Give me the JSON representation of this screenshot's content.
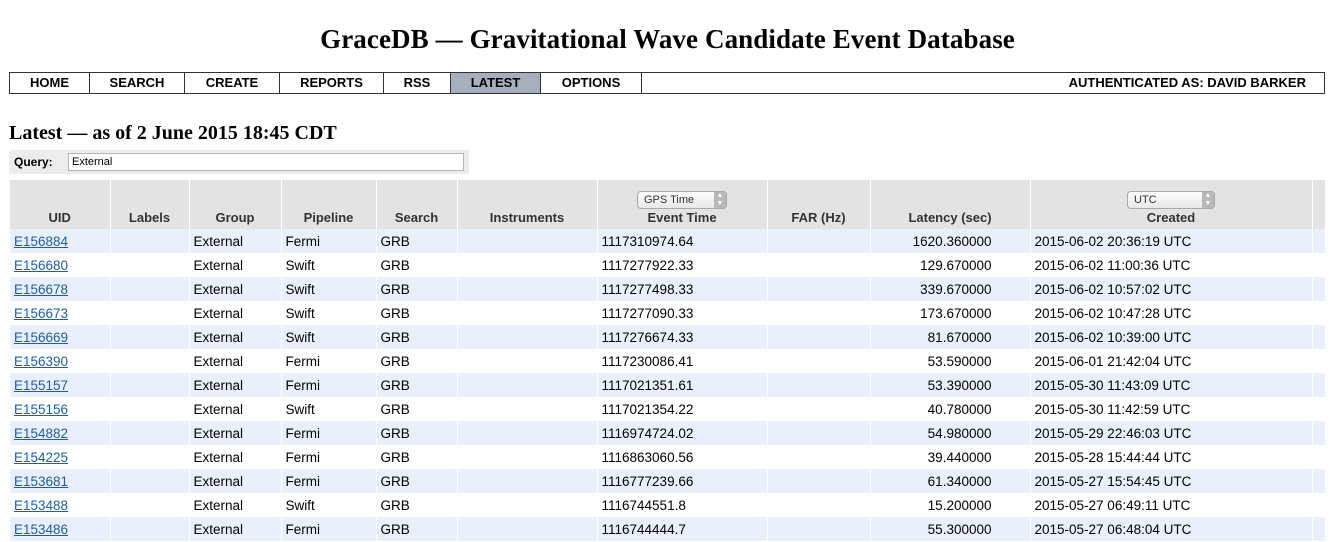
{
  "title": "GraceDB — Gravitational Wave Candidate Event Database",
  "nav": {
    "items": [
      {
        "label": "HOME"
      },
      {
        "label": "SEARCH"
      },
      {
        "label": "CREATE"
      },
      {
        "label": "REPORTS"
      },
      {
        "label": "RSS"
      },
      {
        "label": "LATEST",
        "active": true
      },
      {
        "label": "OPTIONS"
      }
    ],
    "auth": "AUTHENTICATED AS: DAVID BARKER",
    "active_color": "#a7afbd"
  },
  "subtitle": "Latest — as of 2 June 2015 18:45 CDT",
  "query": {
    "label": "Query:",
    "value": "External"
  },
  "table": {
    "columns": {
      "uid": "UID",
      "labels": "Labels",
      "group": "Group",
      "pipeline": "Pipeline",
      "search": "Search",
      "instruments": "Instruments",
      "event_time": "Event Time",
      "far": "FAR (Hz)",
      "latency": "Latency (sec)",
      "created": "Created"
    },
    "event_time_select": "GPS Time",
    "created_select": "UTC",
    "rows": [
      {
        "uid": "E156884",
        "labels": "",
        "group": "External",
        "pipeline": "Fermi",
        "search": "GRB",
        "instruments": "",
        "event_time": "1117310974.64",
        "far": "",
        "latency": "1620.360000",
        "created": "2015-06-02 20:36:19 UTC"
      },
      {
        "uid": "E156680",
        "labels": "",
        "group": "External",
        "pipeline": "Swift",
        "search": "GRB",
        "instruments": "",
        "event_time": "1117277922.33",
        "far": "",
        "latency": "129.670000",
        "created": "2015-06-02 11:00:36 UTC"
      },
      {
        "uid": "E156678",
        "labels": "",
        "group": "External",
        "pipeline": "Swift",
        "search": "GRB",
        "instruments": "",
        "event_time": "1117277498.33",
        "far": "",
        "latency": "339.670000",
        "created": "2015-06-02 10:57:02 UTC"
      },
      {
        "uid": "E156673",
        "labels": "",
        "group": "External",
        "pipeline": "Swift",
        "search": "GRB",
        "instruments": "",
        "event_time": "1117277090.33",
        "far": "",
        "latency": "173.670000",
        "created": "2015-06-02 10:47:28 UTC"
      },
      {
        "uid": "E156669",
        "labels": "",
        "group": "External",
        "pipeline": "Swift",
        "search": "GRB",
        "instruments": "",
        "event_time": "1117276674.33",
        "far": "",
        "latency": "81.670000",
        "created": "2015-06-02 10:39:00 UTC"
      },
      {
        "uid": "E156390",
        "labels": "",
        "group": "External",
        "pipeline": "Fermi",
        "search": "GRB",
        "instruments": "",
        "event_time": "1117230086.41",
        "far": "",
        "latency": "53.590000",
        "created": "2015-06-01 21:42:04 UTC"
      },
      {
        "uid": "E155157",
        "labels": "",
        "group": "External",
        "pipeline": "Fermi",
        "search": "GRB",
        "instruments": "",
        "event_time": "1117021351.61",
        "far": "",
        "latency": "53.390000",
        "created": "2015-05-30 11:43:09 UTC"
      },
      {
        "uid": "E155156",
        "labels": "",
        "group": "External",
        "pipeline": "Swift",
        "search": "GRB",
        "instruments": "",
        "event_time": "1117021354.22",
        "far": "",
        "latency": "40.780000",
        "created": "2015-05-30 11:42:59 UTC"
      },
      {
        "uid": "E154882",
        "labels": "",
        "group": "External",
        "pipeline": "Fermi",
        "search": "GRB",
        "instruments": "",
        "event_time": "1116974724.02",
        "far": "",
        "latency": "54.980000",
        "created": "2015-05-29 22:46:03 UTC"
      },
      {
        "uid": "E154225",
        "labels": "",
        "group": "External",
        "pipeline": "Fermi",
        "search": "GRB",
        "instruments": "",
        "event_time": "1116863060.56",
        "far": "",
        "latency": "39.440000",
        "created": "2015-05-28 15:44:44 UTC"
      },
      {
        "uid": "E153681",
        "labels": "",
        "group": "External",
        "pipeline": "Fermi",
        "search": "GRB",
        "instruments": "",
        "event_time": "1116777239.66",
        "far": "",
        "latency": "61.340000",
        "created": "2015-05-27 15:54:45 UTC"
      },
      {
        "uid": "E153488",
        "labels": "",
        "group": "External",
        "pipeline": "Swift",
        "search": "GRB",
        "instruments": "",
        "event_time": "1116744551.8",
        "far": "",
        "latency": "15.200000",
        "created": "2015-05-27 06:49:11 UTC"
      },
      {
        "uid": "E153486",
        "labels": "",
        "group": "External",
        "pipeline": "Fermi",
        "search": "GRB",
        "instruments": "",
        "event_time": "1116744444.7",
        "far": "",
        "latency": "55.300000",
        "created": "2015-05-27 06:48:04 UTC"
      }
    ]
  },
  "colors": {
    "row_alt": "#eaf0fb",
    "header_bg": "#e3e3e3",
    "link": "#1f5ea0"
  }
}
